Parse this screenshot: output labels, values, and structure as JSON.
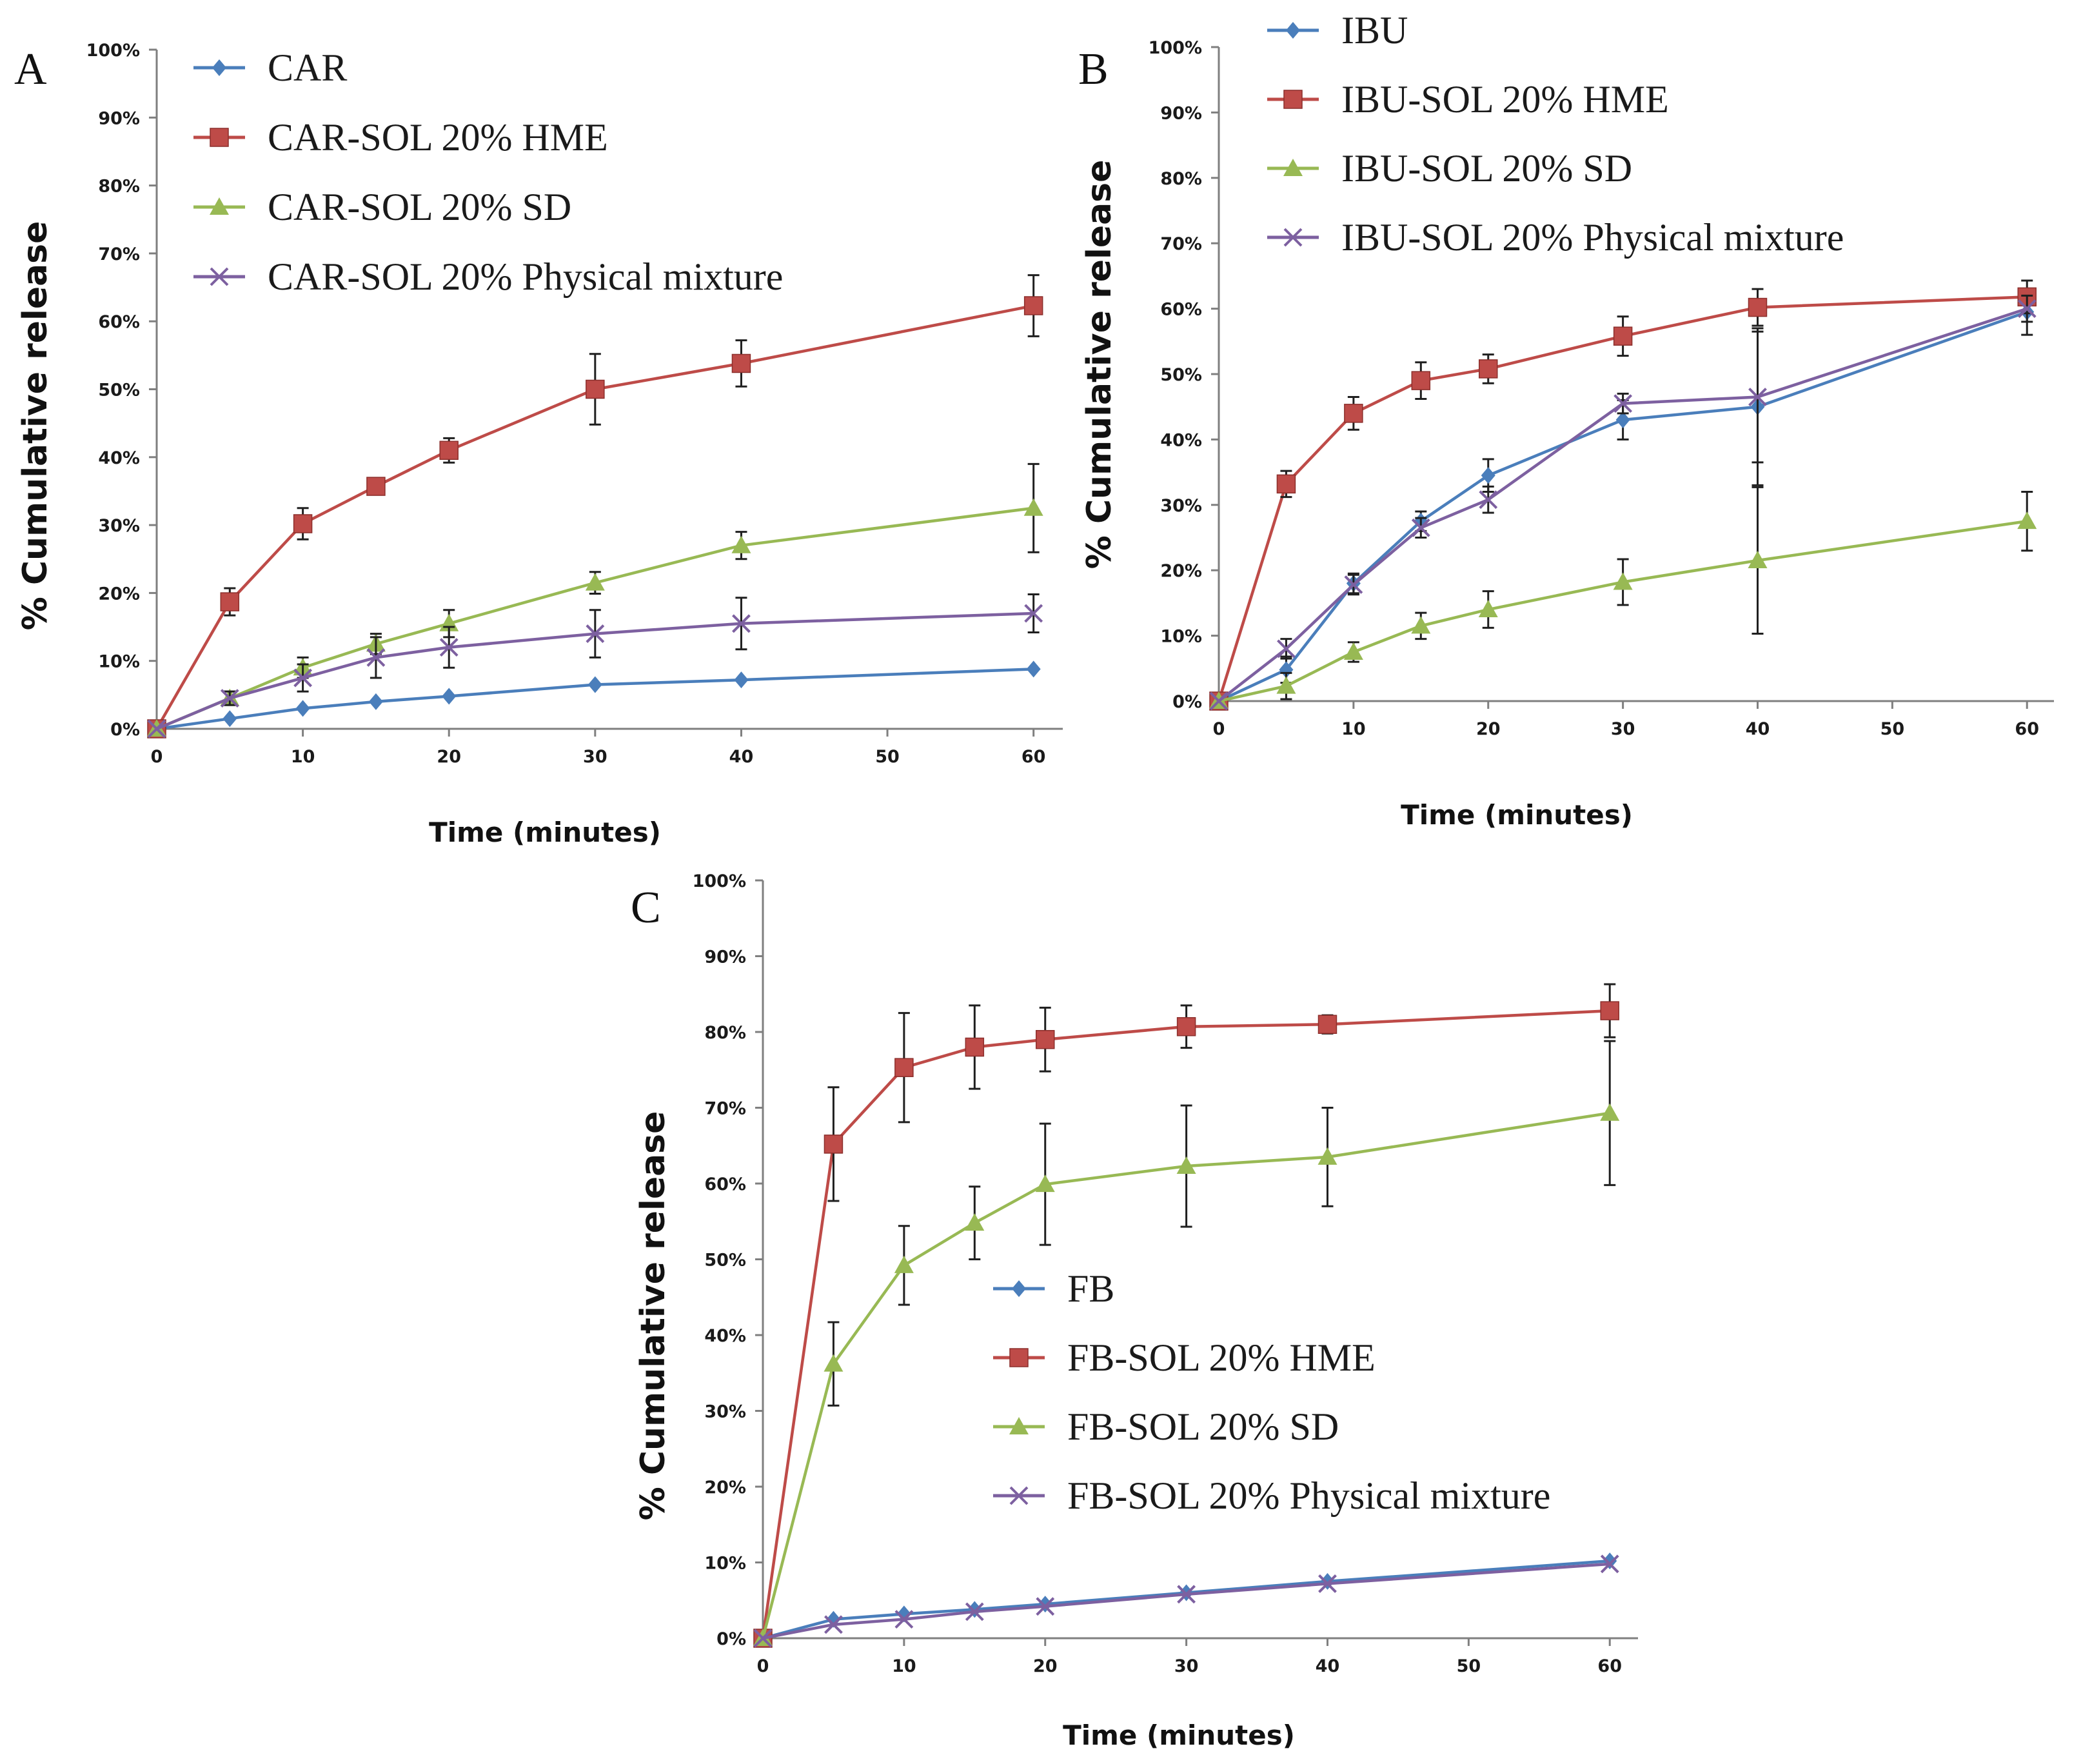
{
  "chart_data": [
    {
      "panel": "A",
      "type": "line",
      "title": "",
      "xlabel": "Time (minutes)",
      "ylabel": "% Cumulative release",
      "xlim": [
        0,
        62
      ],
      "ylim": [
        0,
        100
      ],
      "x_ticks": [
        0,
        10,
        20,
        30,
        40,
        50,
        60
      ],
      "y_ticks": [
        "0%",
        "10%",
        "20%",
        "30%",
        "40%",
        "50%",
        "60%",
        "70%",
        "80%",
        "90%",
        "100%"
      ],
      "x": [
        0,
        5,
        10,
        15,
        20,
        30,
        40,
        60
      ],
      "legend_position": "top-left",
      "series": [
        {
          "name": "CAR",
          "color": "#4a7ebb",
          "marker": "diamond",
          "values": [
            0,
            1.5,
            3,
            4,
            4.8,
            6.5,
            7.2,
            8.8
          ],
          "errors": [
            0,
            0,
            0,
            0,
            0,
            0,
            0,
            0
          ]
        },
        {
          "name": "CAR-SOL 20% HME",
          "color": "#be4b48",
          "marker": "square",
          "values": [
            0,
            18.7,
            30.2,
            35.7,
            41,
            50,
            53.8,
            62.3
          ],
          "errors": [
            0,
            2,
            2.3,
            1.2,
            1.8,
            5.2,
            3.4,
            4.5
          ]
        },
        {
          "name": "CAR-SOL 20% SD",
          "color": "#98b954",
          "marker": "triangle",
          "values": [
            0,
            4.5,
            9,
            12.5,
            15.5,
            21.5,
            27,
            32.5
          ],
          "errors": [
            0,
            1,
            1.5,
            1.5,
            2,
            1.6,
            2,
            6.5
          ]
        },
        {
          "name": "CAR-SOL 20% Physical mixture",
          "color": "#7d60a0",
          "marker": "x",
          "values": [
            0,
            4.5,
            7.5,
            10.5,
            12,
            14,
            15.5,
            17
          ],
          "errors": [
            0,
            1,
            2,
            3,
            3,
            3.5,
            3.8,
            2.8
          ]
        }
      ]
    },
    {
      "panel": "B",
      "type": "line",
      "title": "",
      "xlabel": "Time (minutes)",
      "ylabel": "% Cumulative release",
      "xlim": [
        0,
        62
      ],
      "ylim": [
        0,
        100
      ],
      "x_ticks": [
        0,
        10,
        20,
        30,
        40,
        50,
        60
      ],
      "y_ticks": [
        "0%",
        "10%",
        "20%",
        "30%",
        "40%",
        "50%",
        "60%",
        "70%",
        "80%",
        "90%",
        "100%"
      ],
      "x": [
        0,
        5,
        10,
        15,
        20,
        30,
        40,
        60
      ],
      "legend_position": "top-center",
      "series": [
        {
          "name": "IBU",
          "color": "#4a7ebb",
          "marker": "diamond",
          "values": [
            0,
            4.8,
            18,
            27.5,
            34.5,
            43,
            45,
            59.5
          ],
          "errors": [
            0,
            2,
            1.5,
            1.5,
            2.5,
            3,
            12,
            3.5
          ]
        },
        {
          "name": "IBU-SOL 20% HME",
          "color": "#be4b48",
          "marker": "square",
          "values": [
            0,
            33.2,
            44,
            49,
            50.8,
            55.8,
            60.2,
            61.8
          ],
          "errors": [
            0,
            2,
            2.5,
            2.8,
            2.2,
            3,
            2.8,
            2.5
          ]
        },
        {
          "name": "IBU-SOL 20% SD",
          "color": "#98b954",
          "marker": "triangle",
          "values": [
            0,
            2.3,
            7.5,
            11.5,
            14,
            18.2,
            21.5,
            27.5
          ],
          "errors": [
            0,
            2,
            1.5,
            2,
            2.8,
            3.5,
            11.2,
            4.5
          ]
        },
        {
          "name": "IBU-SOL 20% Physical mixture",
          "color": "#7d60a0",
          "marker": "x",
          "values": [
            0,
            8,
            17.8,
            26.5,
            30.8,
            45.5,
            46.5,
            60
          ],
          "errors": [
            0,
            1.5,
            1.5,
            1.5,
            2,
            1.5,
            10,
            2
          ]
        }
      ]
    },
    {
      "panel": "C",
      "type": "line",
      "title": "",
      "xlabel": "Time (minutes)",
      "ylabel": "% Cumulative release",
      "xlim": [
        0,
        62
      ],
      "ylim": [
        0,
        100
      ],
      "x_ticks": [
        0,
        10,
        20,
        30,
        40,
        50,
        60
      ],
      "y_ticks": [
        "0%",
        "10%",
        "20%",
        "30%",
        "40%",
        "50%",
        "60%",
        "70%",
        "80%",
        "90%",
        "100%"
      ],
      "x": [
        0,
        5,
        10,
        15,
        20,
        30,
        40,
        60
      ],
      "legend_position": "center",
      "series": [
        {
          "name": "FB",
          "color": "#4a7ebb",
          "marker": "diamond",
          "values": [
            0,
            2.5,
            3.2,
            3.8,
            4.5,
            6,
            7.5,
            10.2
          ],
          "errors": [
            0,
            0,
            0,
            0,
            0,
            0,
            0,
            0
          ]
        },
        {
          "name": "FB-SOL 20% HME",
          "color": "#be4b48",
          "marker": "square",
          "values": [
            0,
            65.2,
            75.3,
            78,
            79,
            80.7,
            81,
            82.8
          ],
          "errors": [
            0,
            7.5,
            7.2,
            5.5,
            4.2,
            2.8,
            1.2,
            3.5
          ]
        },
        {
          "name": "FB-SOL 20% SD",
          "color": "#98b954",
          "marker": "triangle",
          "values": [
            0,
            36.2,
            49.2,
            54.8,
            59.9,
            62.3,
            63.5,
            69.3
          ],
          "errors": [
            0,
            5.5,
            5.2,
            4.8,
            8,
            8,
            6.5,
            9.5
          ]
        },
        {
          "name": "FB-SOL 20% Physical mixture",
          "color": "#7d60a0",
          "marker": "x",
          "values": [
            0,
            1.8,
            2.5,
            3.5,
            4.2,
            5.8,
            7.2,
            9.8
          ],
          "errors": [
            0,
            0,
            0,
            0,
            0,
            0,
            0,
            0
          ]
        }
      ]
    }
  ]
}
